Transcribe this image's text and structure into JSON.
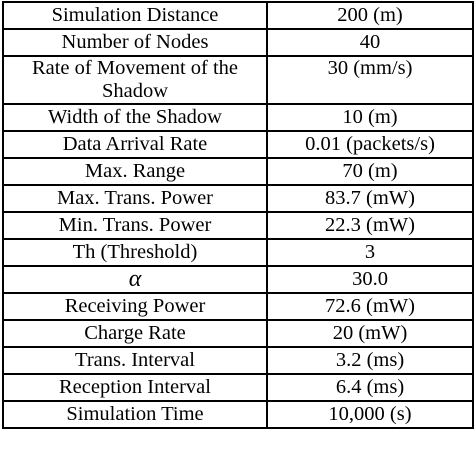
{
  "rows": [
    {
      "parameter": "Simulation Distance",
      "value": "200 (m)"
    },
    {
      "parameter": "Number of Nodes",
      "value": "40"
    },
    {
      "parameter": "Rate of Movement of the Shadow",
      "value": "30 (mm/s)"
    },
    {
      "parameter": "Width of the Shadow",
      "value": "10 (m)"
    },
    {
      "parameter": "Data Arrival Rate",
      "value": "0.01 (packets/s)"
    },
    {
      "parameter": "Max. Range",
      "value": "70 (m)"
    },
    {
      "parameter": "Max. Trans. Power",
      "value": "83.7 (mW)"
    },
    {
      "parameter": "Min. Trans. Power",
      "value": "22.3 (mW)"
    },
    {
      "parameter": "Th (Threshold)",
      "value": "3"
    },
    {
      "parameter": "α",
      "value": "30.0"
    },
    {
      "parameter": "Receiving Power",
      "value": "72.6 (mW)"
    },
    {
      "parameter": "Charge Rate",
      "value": "20 (mW)"
    },
    {
      "parameter": "Trans. Interval",
      "value": "3.2 (ms)"
    },
    {
      "parameter": "Reception Interval",
      "value": "6.4 (ms)"
    },
    {
      "parameter": "Simulation Time",
      "value": "10,000 (s)"
    }
  ]
}
